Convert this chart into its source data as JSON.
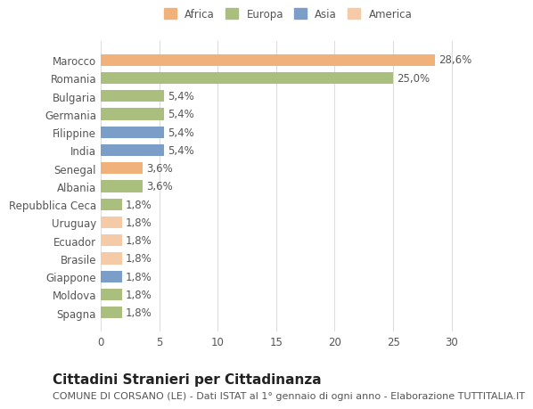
{
  "categories": [
    "Marocco",
    "Romania",
    "Bulgaria",
    "Germania",
    "Filippine",
    "India",
    "Senegal",
    "Albania",
    "Repubblica Ceca",
    "Uruguay",
    "Ecuador",
    "Brasile",
    "Giappone",
    "Moldova",
    "Spagna"
  ],
  "values": [
    28.6,
    25.0,
    5.4,
    5.4,
    5.4,
    5.4,
    3.6,
    3.6,
    1.8,
    1.8,
    1.8,
    1.8,
    1.8,
    1.8,
    1.8
  ],
  "labels": [
    "28,6%",
    "25,0%",
    "5,4%",
    "5,4%",
    "5,4%",
    "5,4%",
    "3,6%",
    "3,6%",
    "1,8%",
    "1,8%",
    "1,8%",
    "1,8%",
    "1,8%",
    "1,8%",
    "1,8%"
  ],
  "colors": [
    "#F0B27A",
    "#AABF7E",
    "#AABF7E",
    "#AABF7E",
    "#7B9EC9",
    "#7B9EC9",
    "#F0B27A",
    "#AABF7E",
    "#AABF7E",
    "#F5CBA7",
    "#F5CBA7",
    "#F5CBA7",
    "#7B9EC9",
    "#AABF7E",
    "#AABF7E"
  ],
  "legend_labels": [
    "Africa",
    "Europa",
    "Asia",
    "America"
  ],
  "legend_colors": [
    "#F0B27A",
    "#AABF7E",
    "#7B9EC9",
    "#F5CBA7"
  ],
  "title": "Cittadini Stranieri per Cittadinanza",
  "subtitle": "COMUNE DI CORSANO (LE) - Dati ISTAT al 1° gennaio di ogni anno - Elaborazione TUTTITALIA.IT",
  "xlim": [
    0,
    32
  ],
  "xticks": [
    0,
    5,
    10,
    15,
    20,
    25,
    30
  ],
  "bg_color": "#ffffff",
  "grid_color": "#dddddd",
  "bar_height": 0.65,
  "label_fontsize": 8.5,
  "tick_fontsize": 8.5,
  "title_fontsize": 11,
  "subtitle_fontsize": 8
}
